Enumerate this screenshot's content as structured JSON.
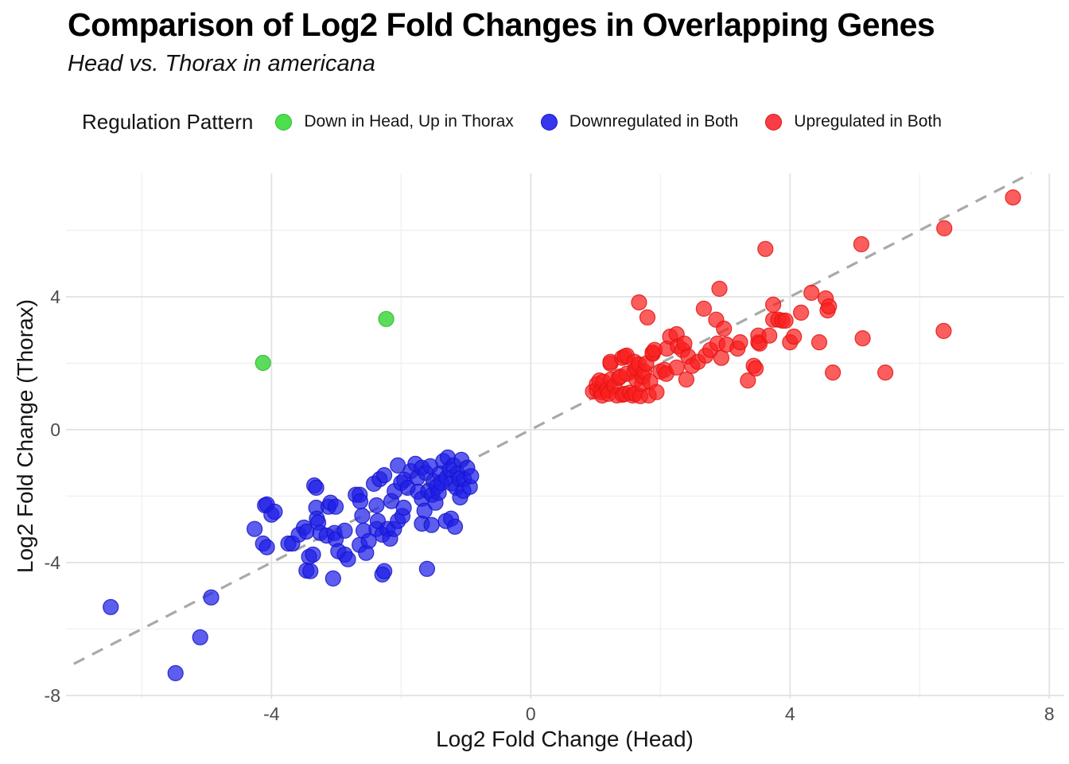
{
  "title": "Comparison of Log2 Fold Changes in Overlapping Genes",
  "subtitle": "Head vs. Thorax in americana",
  "legend": {
    "title": "Regulation Pattern",
    "items": [
      {
        "label": "Down in Head, Up in Thorax",
        "color": "#4ce04c"
      },
      {
        "label": "Downregulated in Both",
        "color": "#3636ee"
      },
      {
        "label": "Upregulated in Both",
        "color": "#f83d44"
      }
    ]
  },
  "chart_data": {
    "type": "scatter",
    "title": "Comparison of Log2 Fold Changes in Overlapping Genes",
    "subtitle": "Head vs. Thorax in americana",
    "xlabel": "Log2 Fold Change (Head)",
    "ylabel": "Log2 Fold Change (Thorax)",
    "xlim": [
      -7.17,
      8.23
    ],
    "ylim": [
      -8.1,
      7.71
    ],
    "x_ticks": [
      -4,
      0,
      4,
      8
    ],
    "y_ticks": [
      -8,
      -4,
      0,
      4
    ],
    "x_minor_ticks": [
      -6,
      -2,
      2,
      6
    ],
    "y_minor_ticks": [
      -6,
      -2,
      2,
      6
    ],
    "grid": true,
    "legend_position": "top",
    "identity_line": {
      "type": "dashed",
      "equation": "y = x",
      "from": -7.05,
      "to": 7.72,
      "color": "#a9a9a9"
    },
    "point_radius": 9.5,
    "series": [
      {
        "name": "Down in Head, Up in Thorax",
        "fill": "#3fd63f",
        "stroke": "#2db82d",
        "opacity": 0.85,
        "points": [
          [
            -4.13,
            2.01
          ],
          [
            -2.23,
            3.33
          ]
        ]
      },
      {
        "name": "Downregulated in Both",
        "fill": "#1f1fe8",
        "stroke": "#1515c9",
        "opacity": 0.72,
        "points": [
          [
            -6.48,
            -5.34
          ],
          [
            -5.48,
            -7.33
          ],
          [
            -5.1,
            -6.25
          ],
          [
            -4.93,
            -5.05
          ],
          [
            -4.26,
            -2.99
          ],
          [
            -4.13,
            -3.43
          ],
          [
            -4.1,
            -2.28
          ],
          [
            -4.07,
            -2.25
          ],
          [
            -4.07,
            -3.54
          ],
          [
            -4.0,
            -2.56
          ],
          [
            -3.95,
            -2.47
          ],
          [
            -3.74,
            -3.43
          ],
          [
            -3.68,
            -3.43
          ],
          [
            -3.58,
            -3.16
          ],
          [
            -3.5,
            -2.95
          ],
          [
            -3.46,
            -3.07
          ],
          [
            -3.46,
            -4.24
          ],
          [
            -3.42,
            -3.83
          ],
          [
            -3.4,
            -4.26
          ],
          [
            -3.36,
            -3.76
          ],
          [
            -3.34,
            -1.68
          ],
          [
            -3.31,
            -1.75
          ],
          [
            -3.31,
            -2.35
          ],
          [
            -3.3,
            -2.68
          ],
          [
            -3.28,
            -2.8
          ],
          [
            -3.25,
            -3.11
          ],
          [
            -3.15,
            -3.19
          ],
          [
            -3.12,
            -2.32
          ],
          [
            -3.09,
            -2.2
          ],
          [
            -3.05,
            -4.48
          ],
          [
            -3.03,
            -3.11
          ],
          [
            -3.01,
            -2.32
          ],
          [
            -3.01,
            -3.3
          ],
          [
            -2.97,
            -3.66
          ],
          [
            -2.87,
            -3.04
          ],
          [
            -2.87,
            -3.76
          ],
          [
            -2.82,
            -3.9
          ],
          [
            -2.7,
            -1.96
          ],
          [
            -2.64,
            -1.96
          ],
          [
            -2.64,
            -3.47
          ],
          [
            -2.63,
            -2.16
          ],
          [
            -2.6,
            -2.59
          ],
          [
            -2.58,
            -3.04
          ],
          [
            -2.54,
            -3.71
          ],
          [
            -2.5,
            -3.35
          ],
          [
            -2.42,
            -1.63
          ],
          [
            -2.38,
            -2.28
          ],
          [
            -2.38,
            -2.99
          ],
          [
            -2.36,
            -2.75
          ],
          [
            -2.33,
            -1.49
          ],
          [
            -2.29,
            -3.16
          ],
          [
            -2.29,
            -4.36
          ],
          [
            -2.26,
            -1.37
          ],
          [
            -2.26,
            -4.26
          ],
          [
            -2.21,
            -2.99
          ],
          [
            -2.17,
            -3.28
          ],
          [
            -2.15,
            -2.15
          ],
          [
            -2.11,
            -2.99
          ],
          [
            -2.1,
            -1.85
          ],
          [
            -2.05,
            -1.08
          ],
          [
            -2.05,
            -2.75
          ],
          [
            -2.0,
            -1.6
          ],
          [
            -1.98,
            -2.6
          ],
          [
            -1.96,
            -2.35
          ],
          [
            -1.95,
            -1.51
          ],
          [
            -1.9,
            -1.75
          ],
          [
            -1.85,
            -1.25
          ],
          [
            -1.78,
            -1.03
          ],
          [
            -1.75,
            -1.45
          ],
          [
            -1.74,
            -1.87
          ],
          [
            -1.68,
            -1.15
          ],
          [
            -1.68,
            -2.08
          ],
          [
            -1.68,
            -2.83
          ],
          [
            -1.64,
            -2.44
          ],
          [
            -1.62,
            -1.3
          ],
          [
            -1.6,
            -4.19
          ],
          [
            -1.58,
            -1.85
          ],
          [
            -1.55,
            -1.1
          ],
          [
            -1.53,
            -2.87
          ],
          [
            -1.52,
            -1.96
          ],
          [
            -1.5,
            -1.55
          ],
          [
            -1.47,
            -2.2
          ],
          [
            -1.45,
            -1.72
          ],
          [
            -1.42,
            -1.9
          ],
          [
            -1.4,
            -1.32
          ],
          [
            -1.38,
            -1.6
          ],
          [
            -1.35,
            -0.95
          ],
          [
            -1.31,
            -2.75
          ],
          [
            -1.3,
            -1.45
          ],
          [
            -1.28,
            -0.84
          ],
          [
            -1.25,
            -1.2
          ],
          [
            -1.23,
            -2.68
          ],
          [
            -1.22,
            -1.62
          ],
          [
            -1.19,
            -1.08
          ],
          [
            -1.17,
            -2.92
          ],
          [
            -1.15,
            -1.75
          ],
          [
            -1.13,
            -1.32
          ],
          [
            -1.1,
            -1.48
          ],
          [
            -1.09,
            -2.04
          ],
          [
            -1.07,
            -0.91
          ],
          [
            -1.04,
            -1.84
          ],
          [
            -1.03,
            -1.49
          ],
          [
            -0.98,
            -1.15
          ],
          [
            -0.94,
            -1.72
          ],
          [
            -0.92,
            -1.4
          ]
        ]
      },
      {
        "name": "Upregulated in Both",
        "fill": "#fb1f1f",
        "stroke": "#e01414",
        "opacity": 0.72,
        "points": [
          [
            0.96,
            1.15
          ],
          [
            1.02,
            1.2
          ],
          [
            1.02,
            1.37
          ],
          [
            1.06,
            1.48
          ],
          [
            1.08,
            1.13
          ],
          [
            1.1,
            1.03
          ],
          [
            1.12,
            1.44
          ],
          [
            1.18,
            1.2
          ],
          [
            1.2,
            1.08
          ],
          [
            1.23,
            1.99
          ],
          [
            1.23,
            2.04
          ],
          [
            1.24,
            1.51
          ],
          [
            1.29,
            1.32
          ],
          [
            1.33,
            1.03
          ],
          [
            1.36,
            1.56
          ],
          [
            1.38,
            1.6
          ],
          [
            1.41,
            2.16
          ],
          [
            1.42,
            1.05
          ],
          [
            1.45,
            1.08
          ],
          [
            1.45,
            2.2
          ],
          [
            1.48,
            1.68
          ],
          [
            1.48,
            2.23
          ],
          [
            1.53,
            1.11
          ],
          [
            1.57,
            1.03
          ],
          [
            1.6,
            1.75
          ],
          [
            1.6,
            2.04
          ],
          [
            1.61,
            1.08
          ],
          [
            1.63,
            1.51
          ],
          [
            1.63,
            1.84
          ],
          [
            1.67,
            1.96
          ],
          [
            1.67,
            3.83
          ],
          [
            1.69,
            1.01
          ],
          [
            1.72,
            1.37
          ],
          [
            1.73,
            1.6
          ],
          [
            1.75,
            1.75
          ],
          [
            1.78,
            1.99
          ],
          [
            1.8,
            3.38
          ],
          [
            1.82,
            1.03
          ],
          [
            1.84,
            1.44
          ],
          [
            1.88,
            2.28
          ],
          [
            1.88,
            2.32
          ],
          [
            1.91,
            2.4
          ],
          [
            1.94,
            1.13
          ],
          [
            2.0,
            1.75
          ],
          [
            2.06,
            1.8
          ],
          [
            2.09,
            1.68
          ],
          [
            2.1,
            2.44
          ],
          [
            2.15,
            2.8
          ],
          [
            2.25,
            1.87
          ],
          [
            2.25,
            2.87
          ],
          [
            2.27,
            2.51
          ],
          [
            2.34,
            2.4
          ],
          [
            2.37,
            2.59
          ],
          [
            2.4,
            1.51
          ],
          [
            2.43,
            2.2
          ],
          [
            2.49,
            1.92
          ],
          [
            2.58,
            2.04
          ],
          [
            2.67,
            3.64
          ],
          [
            2.7,
            2.23
          ],
          [
            2.77,
            2.4
          ],
          [
            2.86,
            3.31
          ],
          [
            2.88,
            2.59
          ],
          [
            2.91,
            4.24
          ],
          [
            2.94,
            2.16
          ],
          [
            2.98,
            3.04
          ],
          [
            3.02,
            2.56
          ],
          [
            3.19,
            2.44
          ],
          [
            3.23,
            2.63
          ],
          [
            3.35,
            1.48
          ],
          [
            3.44,
            1.92
          ],
          [
            3.47,
            1.84
          ],
          [
            3.51,
            2.63
          ],
          [
            3.51,
            2.83
          ],
          [
            3.53,
            2.59
          ],
          [
            3.62,
            5.44
          ],
          [
            3.68,
            2.83
          ],
          [
            3.74,
            3.31
          ],
          [
            3.74,
            3.76
          ],
          [
            3.82,
            3.31
          ],
          [
            3.88,
            3.28
          ],
          [
            3.93,
            3.28
          ],
          [
            4.0,
            2.63
          ],
          [
            4.06,
            2.8
          ],
          [
            4.17,
            3.52
          ],
          [
            4.33,
            4.12
          ],
          [
            4.45,
            2.63
          ],
          [
            4.55,
            3.95
          ],
          [
            4.58,
            3.59
          ],
          [
            4.6,
            3.71
          ],
          [
            4.66,
            1.72
          ],
          [
            5.1,
            5.58
          ],
          [
            5.12,
            2.75
          ],
          [
            5.47,
            1.72
          ],
          [
            6.37,
            2.97
          ],
          [
            6.38,
            6.06
          ],
          [
            7.44,
            6.99
          ]
        ]
      }
    ]
  },
  "axes": {
    "x_title": "Log2 Fold Change (Head)",
    "y_title": "Log2 Fold Change (Thorax)",
    "x_tick_labels": [
      "-4",
      "0",
      "4",
      "8"
    ],
    "y_tick_labels": [
      "-8",
      "-4",
      "0",
      "4"
    ]
  }
}
